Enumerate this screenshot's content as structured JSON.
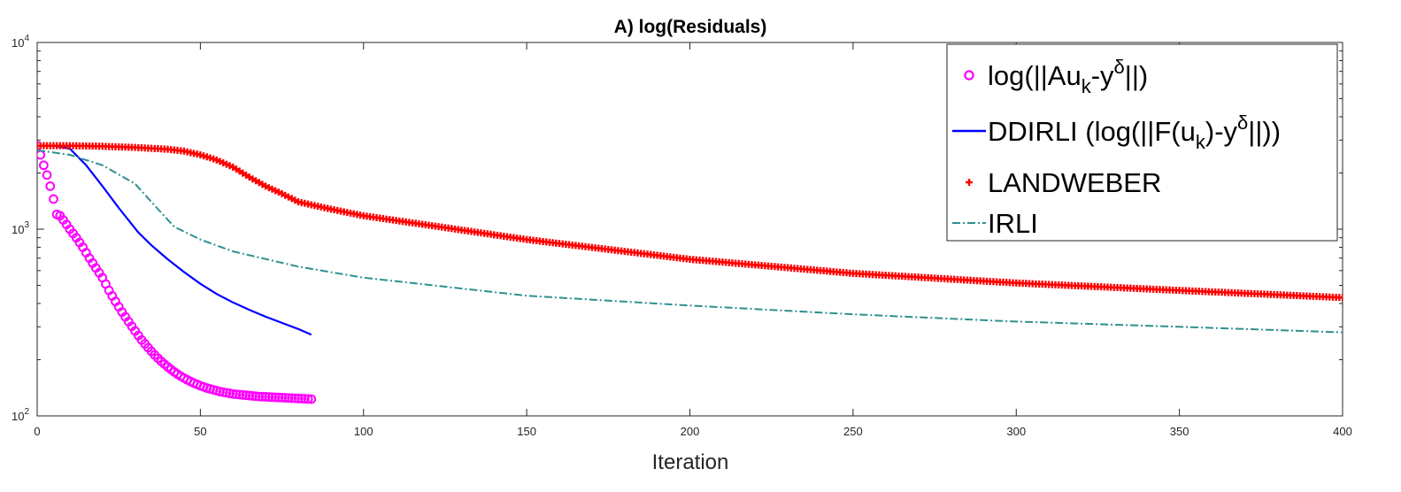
{
  "chart_data": {
    "type": "line",
    "title": "A) log(Residuals)",
    "xlabel": "Iteration",
    "ylabel": "",
    "xlim": [
      0,
      400
    ],
    "ylim": [
      100,
      10000
    ],
    "yscale": "log",
    "grid": false,
    "legend_position": "top-right",
    "x_ticks": [
      "0",
      "50",
      "100",
      "150",
      "200",
      "250",
      "300",
      "350",
      "400"
    ],
    "y_ticks": [
      {
        "base": "10",
        "exp": "2"
      },
      {
        "base": "10",
        "exp": "3"
      },
      {
        "base": "10",
        "exp": "4"
      }
    ],
    "series": [
      {
        "key": "residual",
        "legend": {
          "pre": "log(||Au",
          "sub": "k",
          "mid": "-y",
          "sup": "δ",
          "post": "||)"
        },
        "color": "#ff00ff",
        "marker": "circle",
        "x": [
          0,
          1,
          2,
          3,
          4,
          5,
          6,
          7,
          8,
          9,
          10,
          12,
          14,
          16,
          18,
          20,
          22,
          24,
          26,
          28,
          30,
          32,
          34,
          36,
          38,
          40,
          42,
          44,
          46,
          48,
          50,
          52,
          54,
          56,
          58,
          60,
          62,
          64,
          66,
          68,
          70,
          72,
          74,
          76,
          78,
          80,
          82,
          84
        ],
        "values": [
          2800,
          2500,
          2200,
          1950,
          1700,
          1450,
          1200,
          1180,
          1120,
          1060,
          1000,
          900,
          800,
          700,
          620,
          550,
          470,
          410,
          360,
          320,
          285,
          255,
          232,
          212,
          196,
          183,
          172,
          163,
          156,
          150,
          145,
          141,
          138,
          135,
          133,
          131,
          130,
          129,
          128,
          127,
          126.5,
          126,
          125.5,
          125,
          124.5,
          124,
          123.5,
          123
        ]
      },
      {
        "key": "ddirli",
        "legend": {
          "pre": "DDIRLI (log(||F(u",
          "sub": "k",
          "mid": ")-y",
          "sup": "δ",
          "post": "||))"
        },
        "color": "#0000ff",
        "marker": "none",
        "x": [
          0,
          5,
          10,
          15,
          20,
          25,
          31,
          35,
          40,
          45,
          50,
          55,
          60,
          65,
          70,
          75,
          80,
          84
        ],
        "values": [
          2800,
          2800,
          2700,
          2200,
          1700,
          1300,
          960,
          820,
          690,
          590,
          510,
          450,
          405,
          370,
          340,
          315,
          292,
          272
        ]
      },
      {
        "key": "landweber",
        "legend": {
          "text": "LANDWEBER"
        },
        "color": "#ff0000",
        "marker": "plus",
        "x": [
          0,
          10,
          20,
          30,
          40,
          45,
          50,
          55,
          60,
          65,
          70,
          75,
          80,
          90,
          100,
          120,
          150,
          200,
          250,
          300,
          350,
          400
        ],
        "values": [
          2800,
          2800,
          2780,
          2740,
          2680,
          2620,
          2500,
          2350,
          2150,
          1900,
          1700,
          1550,
          1400,
          1280,
          1180,
          1050,
          880,
          690,
          580,
          515,
          470,
          430
        ]
      },
      {
        "key": "irli",
        "legend": {
          "text": "IRLI"
        },
        "color": "#2e9090",
        "marker": "dashdot",
        "x": [
          0,
          10,
          20,
          30,
          35,
          42,
          50,
          60,
          80,
          100,
          150,
          200,
          250,
          300,
          350,
          400
        ],
        "values": [
          2650,
          2500,
          2200,
          1750,
          1400,
          1030,
          880,
          760,
          630,
          550,
          440,
          390,
          350,
          320,
          300,
          280
        ]
      }
    ]
  }
}
